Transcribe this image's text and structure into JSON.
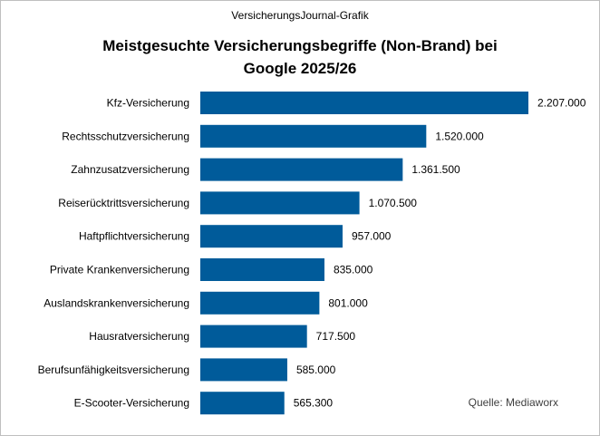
{
  "header": {
    "source_line": "VersicherungsJournal-Grafik"
  },
  "chart_data": {
    "type": "bar",
    "orientation": "horizontal",
    "title_lines": [
      "Meistgesuchte  Versicherungsbegriffe  (Non-Brand)  bei",
      "Google 2025/26"
    ],
    "categories": [
      "Kfz-Versicherung",
      "Rechtsschutzversicherung",
      "Zahnzusatzversicherung",
      "Reiserücktrittsversicherung",
      "Haftpflichtversicherung",
      "Private Krankenversicherung",
      "Auslandskrankenversicherung",
      "Hausratversicherung",
      "Berufsunfähigkeitsversicherung",
      "E-Scooter-Versicherung"
    ],
    "values": [
      2207000,
      1520000,
      1361500,
      1070500,
      957000,
      835000,
      801000,
      717500,
      585000,
      565300
    ],
    "value_labels": [
      "2.207.000",
      "1.520.000",
      "1.361.500",
      "1.070.500",
      "957.000",
      "835.000",
      "801.000",
      "717.500",
      "585.000",
      "565.300"
    ],
    "xlim": [
      0,
      2207000
    ],
    "grid": false,
    "legend": "none",
    "bar_color": "#005B9A",
    "credit": "Quelle:  Mediaworx"
  }
}
